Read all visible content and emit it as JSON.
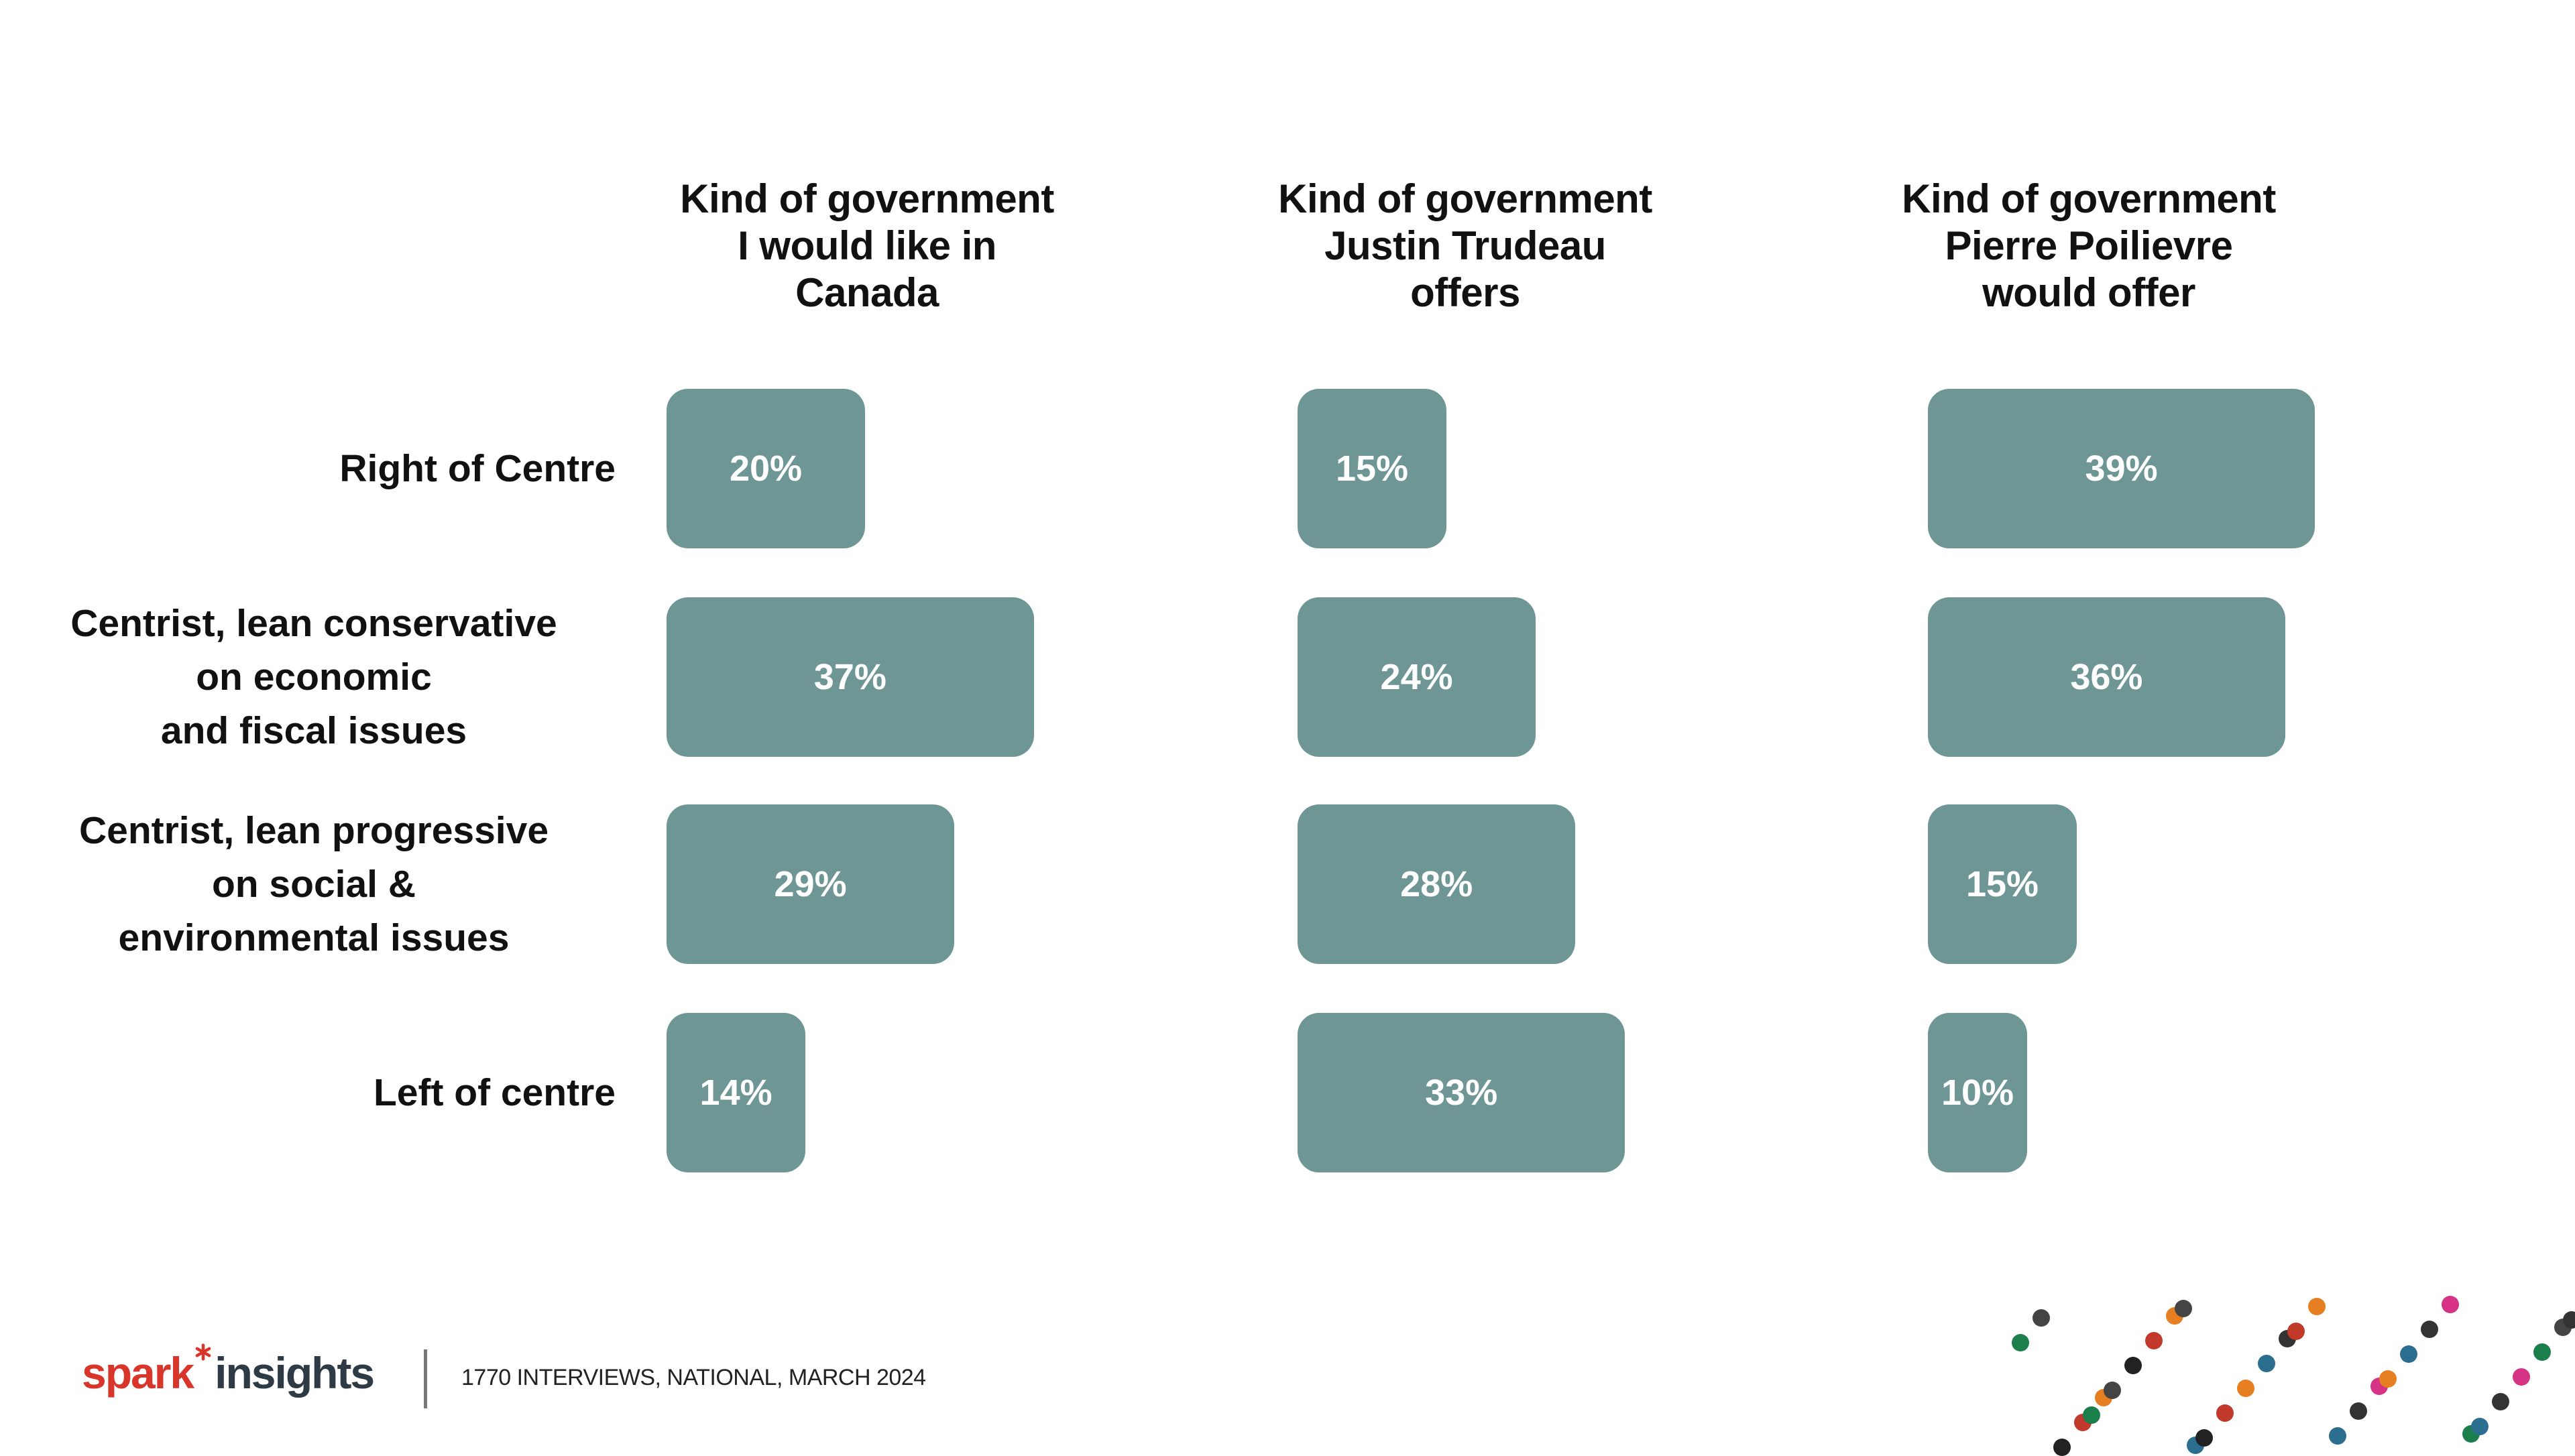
{
  "chart_data": {
    "type": "bar",
    "orientation": "horizontal",
    "categories": [
      "Right of Centre",
      "Centrist, lean conservative\non economic\nand fiscal issues",
      "Centrist, lean progressive\non social &\nenvironmental issues",
      "Left of centre"
    ],
    "series": [
      {
        "name": "Kind of government\nI would like in\nCanada",
        "values": [
          20,
          37,
          29,
          14
        ]
      },
      {
        "name": "Kind of government\nJustin Trudeau\noffers",
        "values": [
          15,
          24,
          28,
          33
        ]
      },
      {
        "name": "Kind of government\nPierre Poilievre\nwould offer",
        "values": [
          39,
          36,
          15,
          10
        ]
      }
    ],
    "value_suffix": "%",
    "bar_color": "#6d9695",
    "grid": false
  },
  "footer": {
    "logo_part1": "spark",
    "logo_part2": "insights",
    "source": "1770 INTERVIEWS, NATIONAL, MARCH 2024"
  }
}
